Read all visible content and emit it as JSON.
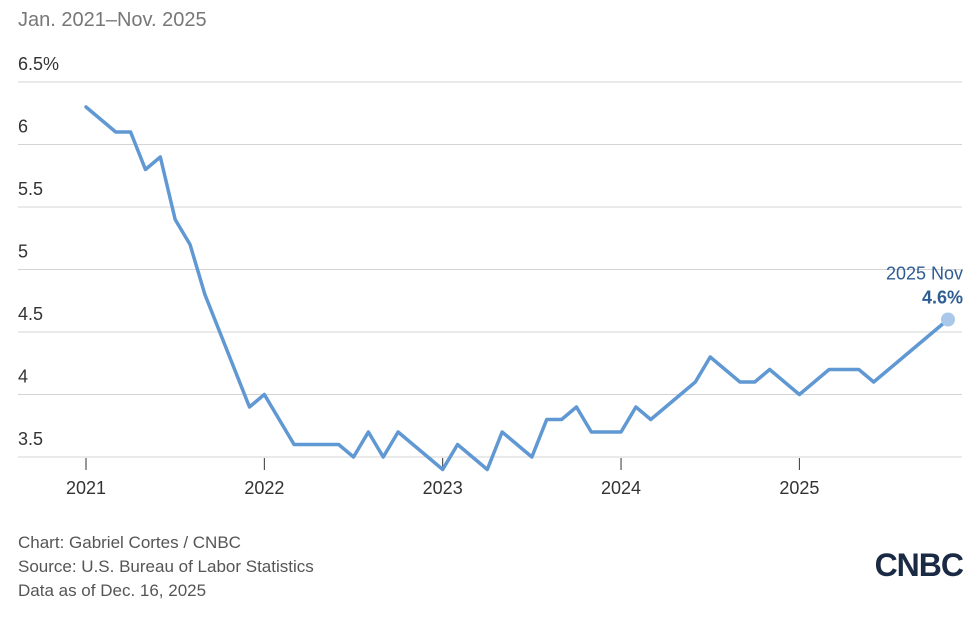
{
  "chart_data": {
    "type": "line",
    "subtitle": "Jan. 2021–Nov. 2025",
    "x": [
      "2021-01",
      "2021-02",
      "2021-03",
      "2021-04",
      "2021-05",
      "2021-06",
      "2021-07",
      "2021-08",
      "2021-09",
      "2021-10",
      "2021-11",
      "2021-12",
      "2022-01",
      "2022-02",
      "2022-03",
      "2022-04",
      "2022-05",
      "2022-06",
      "2022-07",
      "2022-08",
      "2022-09",
      "2022-10",
      "2022-11",
      "2022-12",
      "2023-01",
      "2023-02",
      "2023-03",
      "2023-04",
      "2023-05",
      "2023-06",
      "2023-07",
      "2023-08",
      "2023-09",
      "2023-10",
      "2023-11",
      "2023-12",
      "2024-01",
      "2024-02",
      "2024-03",
      "2024-04",
      "2024-05",
      "2024-06",
      "2024-07",
      "2024-08",
      "2024-09",
      "2024-10",
      "2024-11",
      "2024-12",
      "2025-01",
      "2025-02",
      "2025-03",
      "2025-04",
      "2025-05",
      "2025-06",
      "2025-07",
      "2025-08",
      "2025-09",
      "2025-11"
    ],
    "series": [
      {
        "color": "#5f98d2",
        "values": [
          6.3,
          6.2,
          6.1,
          6.1,
          5.8,
          5.9,
          5.4,
          5.2,
          4.8,
          4.5,
          4.2,
          3.9,
          4.0,
          3.8,
          3.6,
          3.6,
          3.6,
          3.6,
          3.5,
          3.7,
          3.5,
          3.7,
          3.6,
          3.5,
          3.4,
          3.6,
          3.5,
          3.4,
          3.7,
          3.6,
          3.5,
          3.8,
          3.8,
          3.9,
          3.7,
          3.7,
          3.7,
          3.9,
          3.8,
          3.9,
          4.0,
          4.1,
          4.3,
          4.2,
          4.1,
          4.1,
          4.2,
          4.1,
          4.0,
          4.1,
          4.2,
          4.2,
          4.2,
          4.1,
          4.2,
          4.3,
          4.4,
          4.6
        ]
      }
    ],
    "annotation": {
      "label": "2025 Nov",
      "value_label": "4.6%"
    },
    "xlim": [
      "2021-01",
      "2025-11"
    ],
    "xticks": [
      2021,
      2022,
      2023,
      2024,
      2025
    ],
    "ylim": [
      3.4,
      6.5
    ],
    "yticks": [
      3.5,
      4,
      4.5,
      5,
      5.5,
      6,
      {
        "value": 6.5,
        "label": "6.5%"
      }
    ],
    "grid": true,
    "footer": [
      "Chart: Gabriel Cortes / CNBC",
      "Source: U.S. Bureau of Labor Statistics",
      "Data as of Dec. 16, 2025"
    ],
    "logo": "CNBC"
  }
}
